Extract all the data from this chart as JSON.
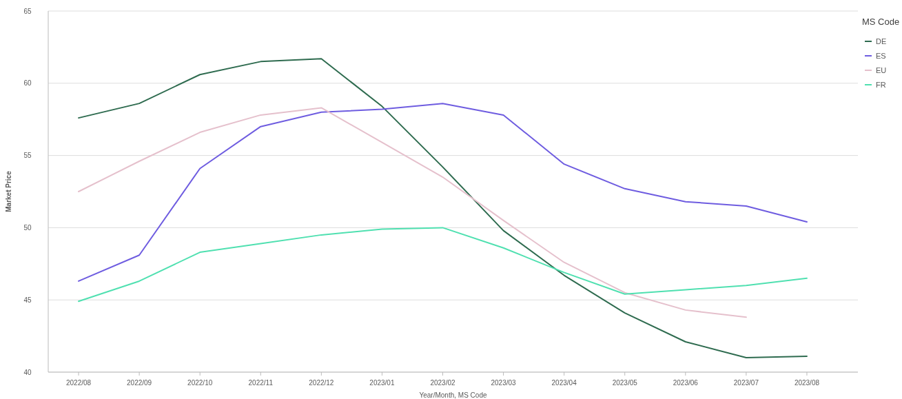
{
  "chart_data": {
    "type": "line",
    "xlabel": "Year/Month, MS Code",
    "ylabel": "Market Price",
    "legend_title": "MS Code",
    "legend": "top right",
    "grid": "y",
    "ylim": [
      40,
      65
    ],
    "yticks": [
      40,
      45,
      50,
      55,
      60,
      65
    ],
    "categories": [
      "2022/08",
      "2022/09",
      "2022/10",
      "2022/11",
      "2022/12",
      "2023/01",
      "2023/02",
      "2023/03",
      "2023/04",
      "2023/05",
      "2023/06",
      "2023/07",
      "2023/08"
    ],
    "series": [
      {
        "name": "DE",
        "color": "#2e6b4f",
        "values": [
          57.6,
          58.6,
          60.6,
          61.5,
          61.7,
          58.4,
          54.2,
          49.8,
          46.7,
          44.1,
          42.1,
          41.0,
          41.1
        ]
      },
      {
        "name": "ES",
        "color": "#6e5ce0",
        "values": [
          46.3,
          48.1,
          54.1,
          57.0,
          58.0,
          58.2,
          58.6,
          57.8,
          54.4,
          52.7,
          51.8,
          51.5,
          50.4
        ]
      },
      {
        "name": "EU",
        "color": "#e5c0cc",
        "values": [
          52.5,
          54.6,
          56.6,
          57.8,
          58.3,
          55.9,
          53.5,
          50.5,
          47.6,
          45.5,
          44.3,
          43.8,
          null
        ]
      },
      {
        "name": "FR",
        "color": "#4fe0b0",
        "values": [
          44.9,
          46.3,
          48.3,
          48.9,
          49.5,
          49.9,
          50.0,
          48.6,
          46.9,
          45.4,
          45.7,
          46.0,
          46.5
        ]
      }
    ]
  }
}
